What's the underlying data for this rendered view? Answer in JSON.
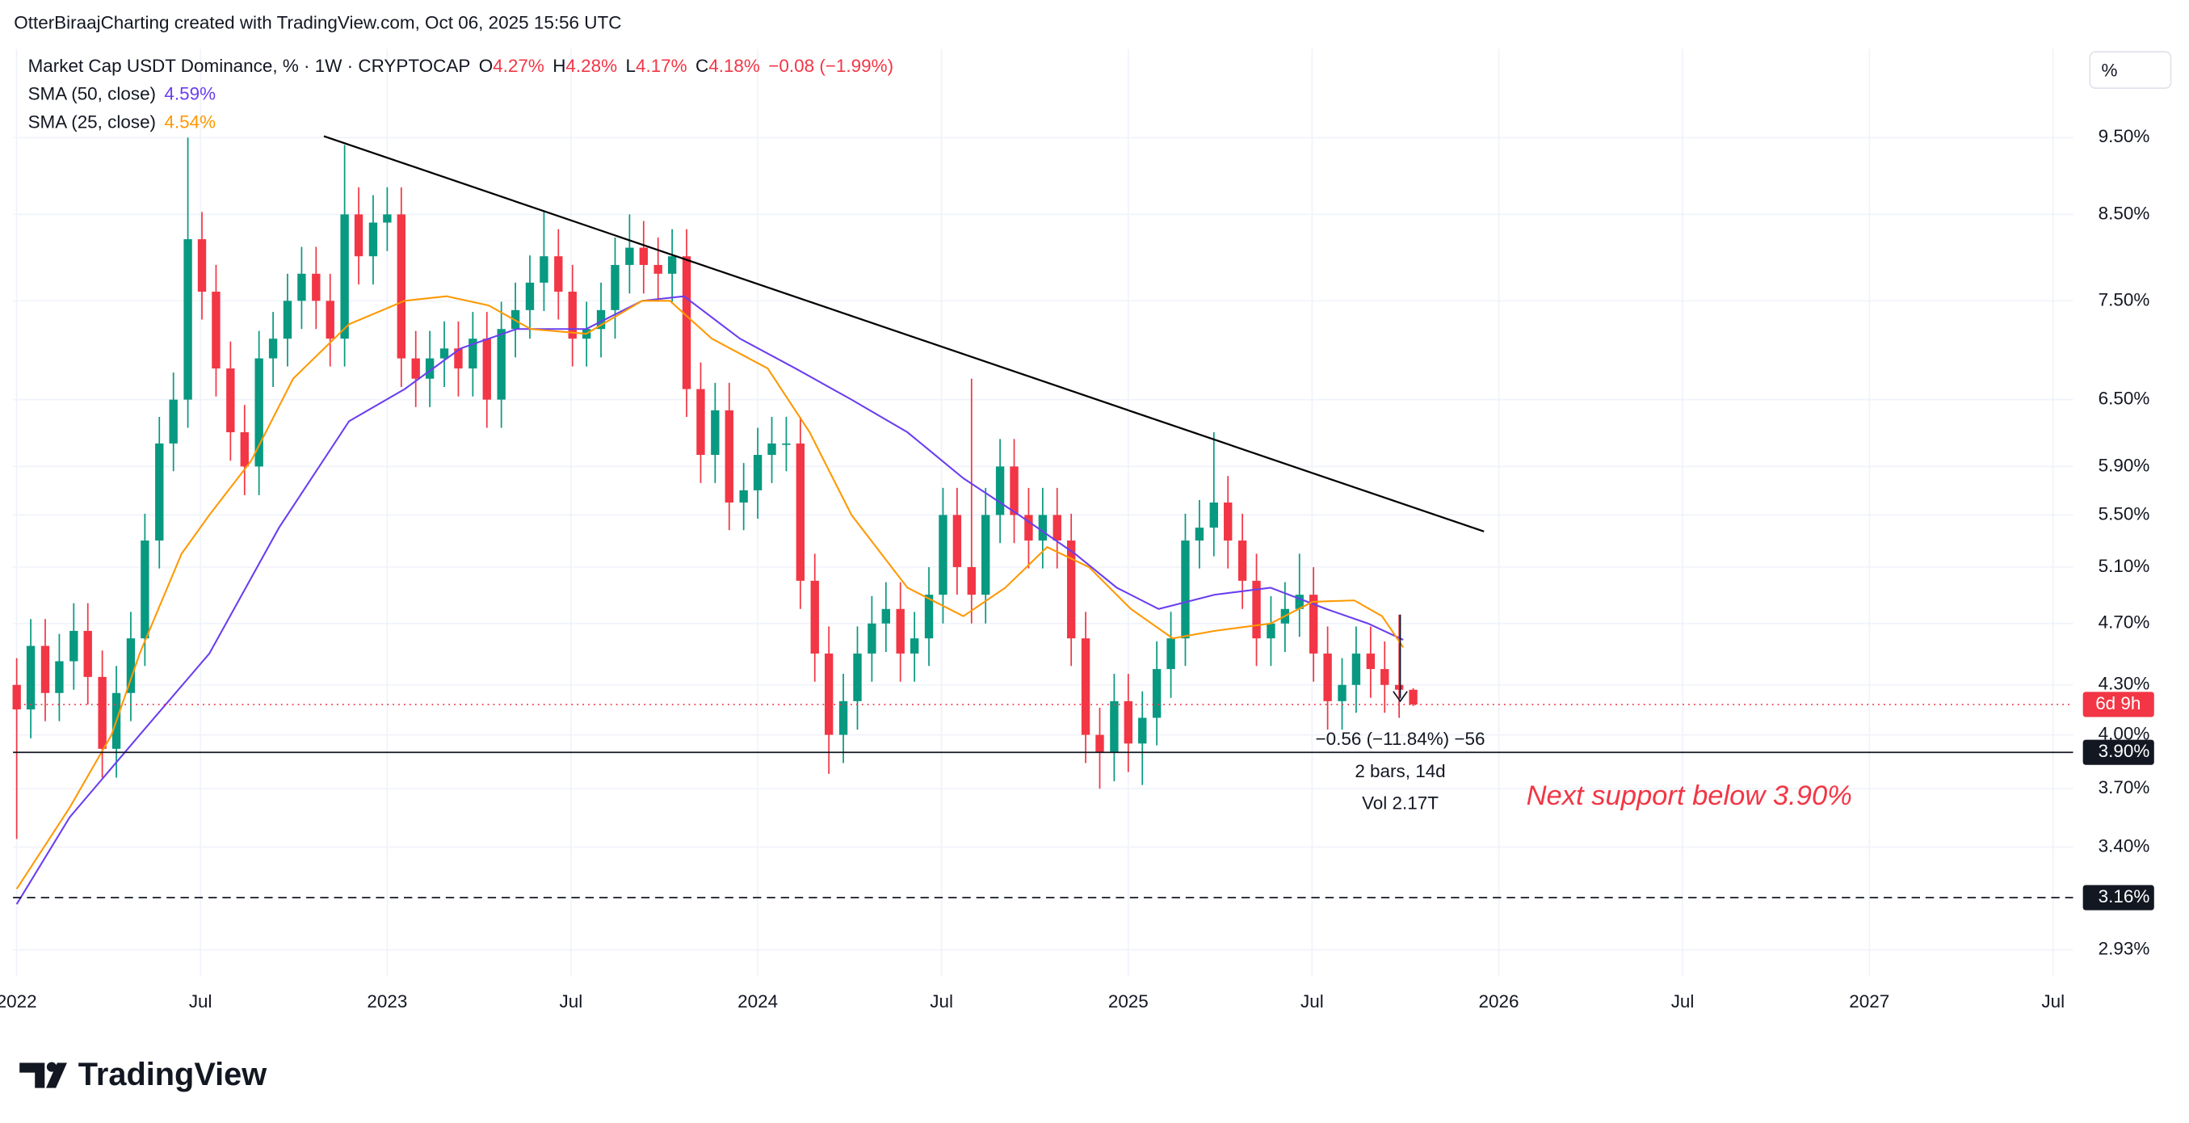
{
  "header": {
    "attribution": "OtterBiraajCharting created with TradingView.com, Oct 06, 2025 15:56 UTC"
  },
  "footer": {
    "brand": "TradingView"
  },
  "chart_data": {
    "type": "candlestick",
    "title": "Market Cap USDT Dominance, % · 1W · CRYPTOCAP",
    "ohlc": [
      {
        "key": "O",
        "value": "4.27%"
      },
      {
        "key": "H",
        "value": "4.28%"
      },
      {
        "key": "L",
        "value": "4.17%"
      },
      {
        "key": "C",
        "value": "4.18%"
      }
    ],
    "change": "−0.08 (−1.99%)",
    "price_scale_button": "%",
    "log_scale": true,
    "grid": true,
    "up_color": "#089981",
    "down_color": "#f23645",
    "x": [
      2022,
      2022.038,
      2022.077,
      2022.115,
      2022.154,
      2022.192,
      2022.231,
      2022.269,
      2022.308,
      2022.346,
      2022.385,
      2022.423,
      2022.462,
      2022.5,
      2022.538,
      2022.577,
      2022.615,
      2022.654,
      2022.692,
      2022.731,
      2022.769,
      2022.808,
      2022.846,
      2022.885,
      2022.923,
      2022.962,
      2023,
      2023.038,
      2023.077,
      2023.115,
      2023.154,
      2023.192,
      2023.231,
      2023.269,
      2023.308,
      2023.346,
      2023.385,
      2023.423,
      2023.462,
      2023.5,
      2023.538,
      2023.577,
      2023.615,
      2023.654,
      2023.692,
      2023.731,
      2023.769,
      2023.808,
      2023.846,
      2023.885,
      2023.923,
      2023.962,
      2024,
      2024.038,
      2024.077,
      2024.115,
      2024.154,
      2024.192,
      2024.231,
      2024.269,
      2024.308,
      2024.346,
      2024.385,
      2024.423,
      2024.462,
      2024.5,
      2024.538,
      2024.577,
      2024.615,
      2024.654,
      2024.692,
      2024.731,
      2024.769,
      2024.808,
      2024.846,
      2024.885,
      2024.923,
      2024.962,
      2025,
      2025.038,
      2025.077,
      2025.115,
      2025.154,
      2025.192,
      2025.231,
      2025.269,
      2025.308,
      2025.346,
      2025.385,
      2025.423,
      2025.462,
      2025.5,
      2025.538,
      2025.577,
      2025.615,
      2025.654,
      2025.692,
      2025.731,
      2025.769
    ],
    "open": [
      4.3,
      4.15,
      4.55,
      4.25,
      4.45,
      4.65,
      4.35,
      3.92,
      4.25,
      4.6,
      5.3,
      6.1,
      6.5,
      8.2,
      7.6,
      6.8,
      6.2,
      5.9,
      6.9,
      7.1,
      7.5,
      7.8,
      7.5,
      7.1,
      8.5,
      8.0,
      8.4,
      8.5,
      6.9,
      6.7,
      6.9,
      7.0,
      6.8,
      7.1,
      6.5,
      7.2,
      7.4,
      7.7,
      8.0,
      7.6,
      7.1,
      7.2,
      7.4,
      7.9,
      8.1,
      7.9,
      7.8,
      8.0,
      6.6,
      6.0,
      6.4,
      5.6,
      5.7,
      6.0,
      6.1,
      6.1,
      5.0,
      4.5,
      4.0,
      4.2,
      4.5,
      4.7,
      4.8,
      4.5,
      4.6,
      4.9,
      5.5,
      5.1,
      4.9,
      5.5,
      5.9,
      5.5,
      5.3,
      5.5,
      5.3,
      4.6,
      4.0,
      3.9,
      4.2,
      3.95,
      4.1,
      4.4,
      4.6,
      5.3,
      5.4,
      5.6,
      5.3,
      5.0,
      4.6,
      4.7,
      4.8,
      4.9,
      4.5,
      4.2,
      4.3,
      4.5,
      4.4,
      4.3,
      4.27
    ],
    "high": [
      4.47,
      4.73,
      4.73,
      4.63,
      4.84,
      4.84,
      4.52,
      4.42,
      4.78,
      5.51,
      6.34,
      6.76,
      9.5,
      8.53,
      7.9,
      7.07,
      6.45,
      7.18,
      7.38,
      7.8,
      8.11,
      8.11,
      7.8,
      9.4,
      8.84,
      8.74,
      8.84,
      8.84,
      7.18,
      7.18,
      7.28,
      7.28,
      7.38,
      7.38,
      7.49,
      7.7,
      8.01,
      8.55,
      8.32,
      7.9,
      7.49,
      7.7,
      8.22,
      8.5,
      8.42,
      8.22,
      8.32,
      8.32,
      6.86,
      6.66,
      6.66,
      5.93,
      6.24,
      6.34,
      6.34,
      6.34,
      5.2,
      4.68,
      4.37,
      4.68,
      4.89,
      4.99,
      4.99,
      4.78,
      5.1,
      5.72,
      5.72,
      6.7,
      5.72,
      6.14,
      6.14,
      5.72,
      5.72,
      5.72,
      5.51,
      4.78,
      4.16,
      4.37,
      4.37,
      4.26,
      4.58,
      4.78,
      5.51,
      5.62,
      6.2,
      5.82,
      5.51,
      5.2,
      4.89,
      4.99,
      5.2,
      5.1,
      4.68,
      4.47,
      4.68,
      4.68,
      4.58,
      4.76,
      4.28
    ],
    "low": [
      3.44,
      3.98,
      4.08,
      4.08,
      4.27,
      4.18,
      3.76,
      3.76,
      4.08,
      4.42,
      5.09,
      5.86,
      6.24,
      7.3,
      6.53,
      5.95,
      5.66,
      5.66,
      6.62,
      6.82,
      7.2,
      7.2,
      6.82,
      6.82,
      7.68,
      7.68,
      8.06,
      6.62,
      6.43,
      6.43,
      6.62,
      6.53,
      6.53,
      6.24,
      6.24,
      6.91,
      7.1,
      7.39,
      7.3,
      6.82,
      6.82,
      6.91,
      7.1,
      7.58,
      7.58,
      7.49,
      7.49,
      6.34,
      5.76,
      5.76,
      5.38,
      5.38,
      5.47,
      5.76,
      5.86,
      4.8,
      4.32,
      3.78,
      3.84,
      4.03,
      4.32,
      4.51,
      4.32,
      4.32,
      4.42,
      4.7,
      4.9,
      4.7,
      4.7,
      5.28,
      5.28,
      5.09,
      5.09,
      5.09,
      4.42,
      3.84,
      3.7,
      3.74,
      3.79,
      3.72,
      3.94,
      4.22,
      4.42,
      5.09,
      5.18,
      5.09,
      4.8,
      4.42,
      4.42,
      4.51,
      4.61,
      4.32,
      4.03,
      4.03,
      4.13,
      4.22,
      4.13,
      4.1,
      4.17
    ],
    "close": [
      4.15,
      4.55,
      4.25,
      4.45,
      4.65,
      4.35,
      3.92,
      4.25,
      4.6,
      5.3,
      6.1,
      6.5,
      8.2,
      7.6,
      6.8,
      6.2,
      5.9,
      6.9,
      7.1,
      7.5,
      7.8,
      7.5,
      7.1,
      8.5,
      8.0,
      8.4,
      8.5,
      6.9,
      6.7,
      6.9,
      7.0,
      6.8,
      7.1,
      6.5,
      7.2,
      7.4,
      7.7,
      8.0,
      7.6,
      7.1,
      7.2,
      7.4,
      7.9,
      8.1,
      7.9,
      7.8,
      8.0,
      6.6,
      6.0,
      6.4,
      5.6,
      5.7,
      6.0,
      6.1,
      6.1,
      5.0,
      4.5,
      4.0,
      4.2,
      4.5,
      4.7,
      4.8,
      4.5,
      4.6,
      4.9,
      5.5,
      5.1,
      4.9,
      5.5,
      5.9,
      5.5,
      5.3,
      5.5,
      5.3,
      4.6,
      4.0,
      3.9,
      4.2,
      3.95,
      4.1,
      4.4,
      4.6,
      5.3,
      5.4,
      5.6,
      5.3,
      5.0,
      4.6,
      4.7,
      4.8,
      4.9,
      4.5,
      4.2,
      4.3,
      4.5,
      4.4,
      4.3,
      4.27,
      4.18
    ],
    "series": [
      {
        "name": "SMA (50, close)",
        "color": "#6a3ef0",
        "last_value_label": "4.59%",
        "x": [
          2022,
          2022.143,
          2022.332,
          2022.52,
          2022.708,
          2022.897,
          2023.047,
          2023.198,
          2023.349,
          2023.537,
          2023.688,
          2023.801,
          2023.952,
          2024.102,
          2024.253,
          2024.404,
          2024.555,
          2024.705,
          2024.856,
          2024.969,
          2025.082,
          2025.233,
          2025.384,
          2025.534,
          2025.647,
          2025.742
        ],
        "values": [
          3.13,
          3.55,
          4.0,
          4.5,
          5.4,
          6.3,
          6.6,
          7.0,
          7.2,
          7.2,
          7.5,
          7.55,
          7.1,
          6.8,
          6.5,
          6.2,
          5.8,
          5.5,
          5.2,
          4.95,
          4.8,
          4.9,
          4.95,
          4.8,
          4.7,
          4.59
        ]
      },
      {
        "name": "SMA (25, close)",
        "color": "#ff9800",
        "last_value_label": "4.54%",
        "x": [
          2022,
          2022.143,
          2022.256,
          2022.332,
          2022.445,
          2022.52,
          2022.633,
          2022.746,
          2022.897,
          2023.047,
          2023.16,
          2023.274,
          2023.387,
          2023.537,
          2023.688,
          2023.763,
          2023.876,
          2024.027,
          2024.14,
          2024.253,
          2024.404,
          2024.555,
          2024.668,
          2024.781,
          2024.894,
          2025.007,
          2025.12,
          2025.233,
          2025.384,
          2025.497,
          2025.61,
          2025.685,
          2025.742
        ],
        "values": [
          3.2,
          3.6,
          4.0,
          4.5,
          5.2,
          5.5,
          5.95,
          6.7,
          7.25,
          7.5,
          7.55,
          7.45,
          7.2,
          7.15,
          7.5,
          7.5,
          7.1,
          6.8,
          6.2,
          5.5,
          4.95,
          4.75,
          4.95,
          5.25,
          5.1,
          4.8,
          4.6,
          4.65,
          4.7,
          4.85,
          4.86,
          4.75,
          4.54
        ]
      }
    ],
    "trendline": {
      "x": [
        2022.829,
        2025.96
      ],
      "y": [
        9.52,
        5.37
      ],
      "color": "#000000"
    },
    "hlines": [
      {
        "value": 3.9,
        "label": "3.90%",
        "style": "solid",
        "color": "#131722"
      },
      {
        "value": 3.16,
        "label": "3.16%",
        "style": "dashed",
        "color": "#131722"
      }
    ],
    "countdown": "6d 9h",
    "measure": [
      "−0.56 (−11.84%) −56",
      "2 bars, 14d",
      "Vol 2.17T"
    ],
    "annotation": "Next support below 3.90%",
    "xlim": [
      2021.99,
      2027.55
    ],
    "ylim": [
      2.82,
      10.8
    ],
    "xticks": [
      2022,
      {
        "value": 2022.496,
        "label": "Jul"
      },
      2023,
      {
        "value": 2023.496,
        "label": "Jul"
      },
      2024,
      {
        "value": 2024.496,
        "label": "Jul"
      },
      2025,
      {
        "value": 2025.496,
        "label": "Jul"
      },
      2026,
      {
        "value": 2026.496,
        "label": "Jul"
      },
      2027,
      {
        "value": 2027.496,
        "label": "Jul"
      }
    ],
    "yticks": [
      {
        "value": 2.93,
        "label": "2.93%"
      },
      {
        "value": 3.4,
        "label": "3.40%"
      },
      {
        "value": 3.7,
        "label": "3.70%"
      },
      {
        "value": 4.0,
        "label": "4.00%"
      },
      {
        "value": 4.3,
        "label": "4.30%"
      },
      {
        "value": 4.7,
        "label": "4.70%"
      },
      {
        "value": 5.1,
        "label": "5.10%"
      },
      {
        "value": 5.5,
        "label": "5.50%"
      },
      {
        "value": 5.9,
        "label": "5.90%"
      },
      {
        "value": 6.5,
        "label": "6.50%"
      },
      {
        "value": 7.5,
        "label": "7.50%"
      },
      {
        "value": 8.5,
        "label": "8.50%"
      },
      {
        "value": 9.5,
        "label": "9.50%"
      }
    ]
  }
}
